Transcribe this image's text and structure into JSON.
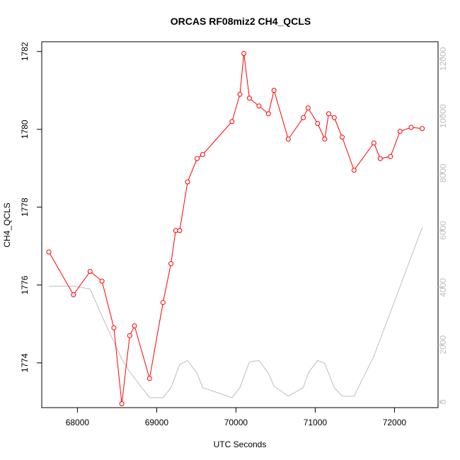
{
  "chart_data": {
    "type": "line",
    "title": "ORCAS RF08miz2 CH4_QCLS",
    "xlabel": "UTC Seconds",
    "ylabel": "CH4_QCLS",
    "xlim": [
      67550,
      72550
    ],
    "ylim": [
      1772.85,
      1782.25
    ],
    "y2lim": [
      -200,
      12600
    ],
    "x_ticks": [
      68000,
      69000,
      70000,
      71000,
      72000
    ],
    "y_ticks": [
      1774,
      1776,
      1778,
      1780,
      1782
    ],
    "y2_ticks": [
      0,
      2000,
      4000,
      6000,
      8000,
      10000,
      12000
    ],
    "grid": false,
    "legend": "none",
    "series": [
      {
        "color": "#ff0000",
        "marker": "open-circle",
        "axis": "left",
        "x": [
          67640,
          67950,
          68160,
          68310,
          68460,
          68560,
          68660,
          68720,
          68910,
          69080,
          69180,
          69240,
          69290,
          69390,
          69510,
          69580,
          69950,
          70050,
          70100,
          70170,
          70290,
          70410,
          70480,
          70660,
          70850,
          70910,
          71030,
          71120,
          71170,
          71240,
          71340,
          71490,
          71740,
          71820,
          71950,
          72070,
          72210,
          72350
        ],
        "y": [
          1776.85,
          1775.75,
          1776.35,
          1776.1,
          1774.9,
          1772.95,
          1774.7,
          1774.95,
          1773.6,
          1775.55,
          1776.55,
          1777.4,
          1777.4,
          1778.65,
          1779.25,
          1779.35,
          1780.2,
          1780.9,
          1781.95,
          1780.8,
          1780.6,
          1780.4,
          1781.0,
          1779.75,
          1780.3,
          1780.55,
          1780.15,
          1779.75,
          1780.4,
          1780.3,
          1779.8,
          1778.95,
          1779.65,
          1779.25,
          1779.3,
          1779.95,
          1780.05,
          1780.02
        ]
      },
      {
        "color": "#bebebe",
        "marker": "none",
        "axis": "right",
        "x": [
          67640,
          67950,
          68160,
          68310,
          68460,
          68560,
          68660,
          68910,
          69080,
          69180,
          69290,
          69390,
          69510,
          69580,
          69950,
          70050,
          70170,
          70290,
          70410,
          70480,
          70660,
          70850,
          70910,
          71030,
          71120,
          71240,
          71340,
          71490,
          71740,
          72350
        ],
        "y": [
          4050,
          4050,
          3950,
          3000,
          2100,
          1500,
          1050,
          150,
          150,
          500,
          1300,
          1450,
          1000,
          500,
          150,
          500,
          1400,
          1450,
          1000,
          550,
          200,
          500,
          1000,
          1450,
          1350,
          500,
          200,
          200,
          1600,
          6100
        ]
      }
    ]
  }
}
